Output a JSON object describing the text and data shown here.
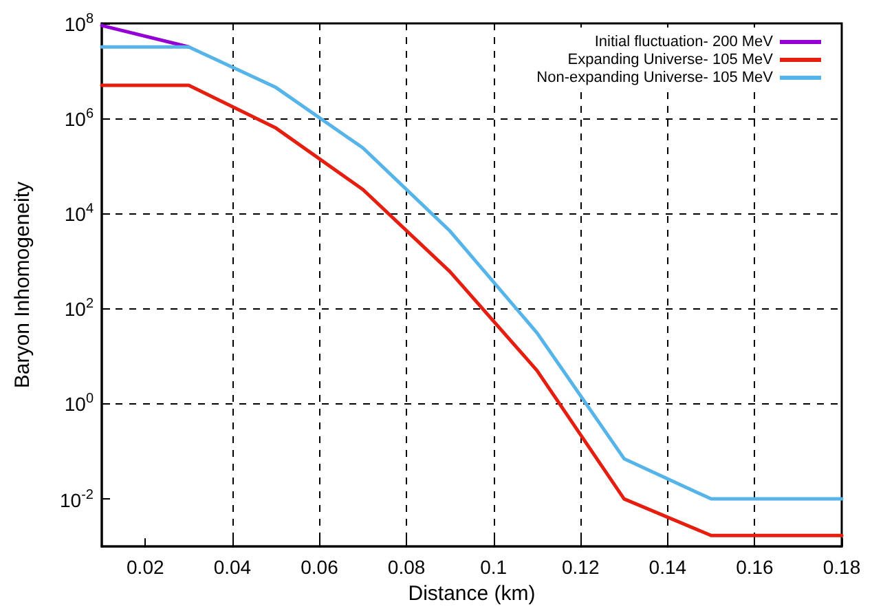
{
  "chart_data": {
    "type": "line",
    "xlabel": "Distance (km)",
    "ylabel": "Baryon Inhomogeneity",
    "log": "y",
    "grid": true,
    "legend": "top right",
    "marker": "none",
    "line_style": "solid",
    "xlim": [
      0.01,
      0.18
    ],
    "xticks": [
      0.02,
      0.04,
      0.06,
      0.08,
      0.1,
      0.12,
      0.14,
      0.16,
      0.18
    ],
    "ylim": [
      0.001,
      100000000
    ],
    "yticks": [
      {
        "value": 0.01,
        "label": "10$^{-2}$"
      },
      {
        "value": 1,
        "label": "10$^{0}$"
      },
      {
        "value": 100,
        "label": "10$^{2}$"
      },
      {
        "value": 10000,
        "label": "10$^{4}$"
      },
      {
        "value": 1000000,
        "label": "10$^{6}$"
      },
      {
        "value": 100000000,
        "label": "10$^{8}$"
      }
    ],
    "series": [
      {
        "name": "Initial fluctuation- 200 MeV",
        "color": "#9400d3",
        "x": [
          0.01,
          0.03
        ],
        "values": [
          90000000,
          32000000
        ]
      },
      {
        "name": "Expanding Universe- 105 MeV",
        "color": "#e51e10",
        "x": [
          0.01,
          0.03,
          0.05,
          0.07,
          0.09,
          0.11,
          0.13,
          0.15,
          0.18
        ],
        "values": [
          5000000,
          5000000,
          630000,
          32000,
          600,
          5,
          0.01,
          0.0017,
          0.0017
        ]
      },
      {
        "name": "Non-expanding Universe- 105 MeV",
        "color": "#56b4e9",
        "x": [
          0.01,
          0.03,
          0.05,
          0.07,
          0.09,
          0.11,
          0.13,
          0.15,
          0.18
        ],
        "values": [
          32000000,
          32000000,
          4500000,
          240000,
          4300,
          31,
          0.07,
          0.01,
          0.01
        ]
      }
    ]
  }
}
